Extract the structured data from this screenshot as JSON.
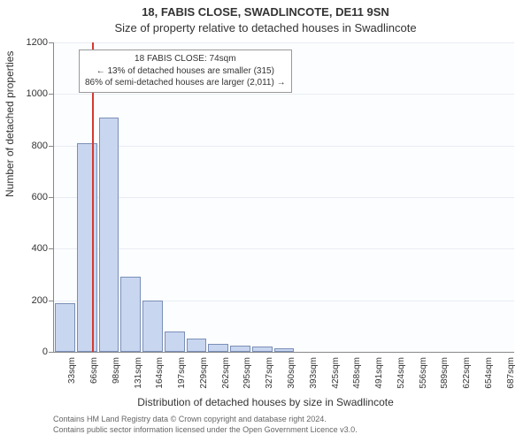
{
  "title_line1": "18, FABIS CLOSE, SWADLINCOTE, DE11 9SN",
  "title_line2": "Size of property relative to detached houses in Swadlincote",
  "ylabel": "Number of detached properties",
  "xlabel": "Distribution of detached houses by size in Swadlincote",
  "chart": {
    "type": "bar",
    "ylim": [
      0,
      1200
    ],
    "ytick_step": 200,
    "x_categories": [
      "33sqm",
      "66sqm",
      "98sqm",
      "131sqm",
      "164sqm",
      "197sqm",
      "229sqm",
      "262sqm",
      "295sqm",
      "327sqm",
      "360sqm",
      "393sqm",
      "425sqm",
      "458sqm",
      "491sqm",
      "524sqm",
      "556sqm",
      "589sqm",
      "622sqm",
      "654sqm",
      "687sqm"
    ],
    "values": [
      190,
      810,
      910,
      290,
      200,
      80,
      50,
      30,
      25,
      20,
      15,
      0,
      0,
      0,
      0,
      0,
      0,
      0,
      0,
      0,
      0
    ],
    "bar_fill": "#c9d6ef",
    "bar_stroke": "#7a8fb8",
    "grid_color": "#e8ecf2",
    "background": "#fcfdff",
    "marker_x_index": 1.25,
    "marker_color": "#d43a2f"
  },
  "infobox": {
    "line1": "18 FABIS CLOSE: 74sqm",
    "line2": "← 13% of detached houses are smaller (315)",
    "line3": "86% of semi-detached houses are larger (2,011) →"
  },
  "footer": {
    "line1": "Contains HM Land Registry data © Crown copyright and database right 2024.",
    "line2": "Contains public sector information licensed under the Open Government Licence v3.0."
  },
  "fontsize": {
    "title": 13,
    "axis_label": 12,
    "tick": 11,
    "xtick": 10,
    "infobox": 10,
    "footer": 9
  }
}
